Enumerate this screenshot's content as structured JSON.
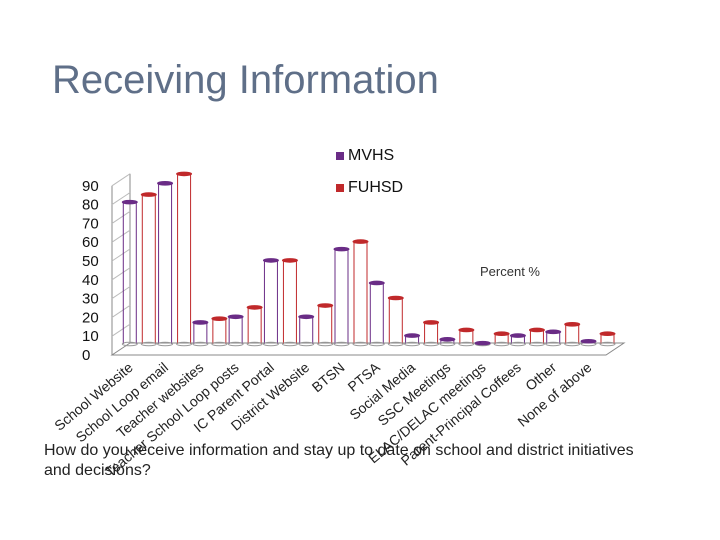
{
  "slide": {
    "title": "Receiving Information",
    "question": "How do you receive information and stay up to date on school and district initiatives and decisions?"
  },
  "colors": {
    "series1": "#6a2c86",
    "series2": "#c0292b",
    "grid": "#bbbbbb",
    "wall": "#888888",
    "title": "#5f6f88"
  },
  "chart_data": {
    "type": "bar",
    "title": "",
    "xlabel": "",
    "ylabel": "",
    "ylim": [
      0,
      90
    ],
    "yticks": [
      "0",
      "10",
      "20",
      "30",
      "40",
      "50",
      "60",
      "70",
      "80",
      "90"
    ],
    "annotation": "Percent %",
    "legend_position": "top-right",
    "categories": [
      "School Website",
      "School Loop email",
      "Teacher websites",
      "Teacher School Loop posts",
      "IC Parent Portal",
      "District Website",
      "BTSN",
      "PTSA",
      "Social Media",
      "SSC Meetings",
      "ELAC/DELAC meetings",
      "Parent-Principal Coffees",
      "Other",
      "None of above"
    ],
    "series": [
      {
        "name": "MVHS",
        "values": [
          76,
          86,
          12,
          15,
          45,
          15,
          51,
          33,
          5,
          3,
          1,
          5,
          7,
          2
        ]
      },
      {
        "name": "FUHSD",
        "values": [
          80,
          91,
          14,
          20,
          45,
          21,
          55,
          25,
          12,
          8,
          6,
          8,
          11,
          6
        ]
      }
    ]
  }
}
